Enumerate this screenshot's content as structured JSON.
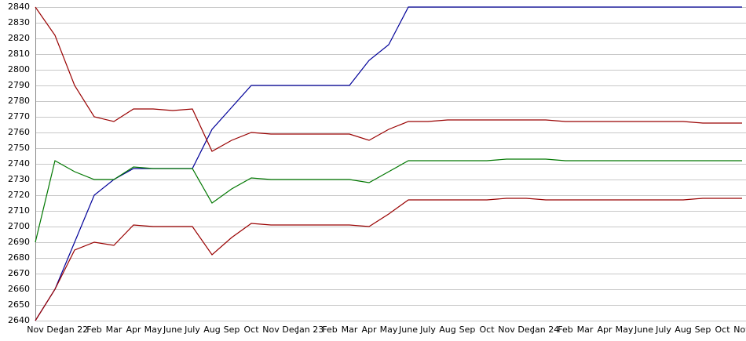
{
  "chart_data": {
    "type": "line",
    "categories": [
      "Nov",
      "Dec",
      "Jan 22",
      "Feb",
      "Mar",
      "Apr",
      "May",
      "June",
      "July",
      "Aug",
      "Sep",
      "Oct",
      "Nov",
      "Dec",
      "Jan 23",
      "Feb",
      "Mar",
      "Apr",
      "May",
      "June",
      "July",
      "Aug",
      "Sep",
      "Oct",
      "Nov",
      "Dec",
      "Jan 24",
      "Feb",
      "Mar",
      "Apr",
      "May",
      "June",
      "July",
      "Aug",
      "Sep",
      "Oct",
      "Nov"
    ],
    "series": [
      {
        "color": "#000099",
        "values": [
          2640,
          2660,
          2690,
          2720,
          2730,
          2737,
          2737,
          2737,
          2737,
          2762,
          2776,
          2790,
          2790,
          2790,
          2790,
          2790,
          2790,
          2806,
          2816,
          2840,
          2840,
          2840,
          2840,
          2840,
          2840,
          2840,
          2840,
          2840,
          2840,
          2840,
          2840,
          2840,
          2840,
          2840,
          2840,
          2840,
          2840
        ]
      },
      {
        "color": "#990000",
        "values": [
          2840,
          2822,
          2790,
          2770,
          2767,
          2775,
          2775,
          2774,
          2775,
          2748,
          2755,
          2760,
          2759,
          2759,
          2759,
          2759,
          2759,
          2755,
          2762,
          2767,
          2767,
          2768,
          2768,
          2768,
          2768,
          2768,
          2768,
          2767,
          2767,
          2767,
          2767,
          2767,
          2767,
          2767,
          2766,
          2766,
          2766
        ]
      },
      {
        "color": "#007700",
        "values": [
          2690,
          2742,
          2735,
          2730,
          2730,
          2738,
          2737,
          2737,
          2737,
          2715,
          2724,
          2731,
          2730,
          2730,
          2730,
          2730,
          2730,
          2728,
          2735,
          2742,
          2742,
          2742,
          2742,
          2742,
          2743,
          2743,
          2743,
          2742,
          2742,
          2742,
          2742,
          2742,
          2742,
          2742,
          2742,
          2742,
          2742
        ]
      },
      {
        "color": "#990000",
        "values": [
          2640,
          2660,
          2685,
          2690,
          2688,
          2701,
          2700,
          2700,
          2700,
          2682,
          2693,
          2702,
          2701,
          2701,
          2701,
          2701,
          2701,
          2700,
          2708,
          2717,
          2717,
          2717,
          2717,
          2717,
          2718,
          2718,
          2717,
          2717,
          2717,
          2717,
          2717,
          2717,
          2717,
          2717,
          2718,
          2718,
          2718
        ]
      }
    ],
    "ylim": [
      2640,
      2840
    ],
    "yticks": [
      2640,
      2650,
      2660,
      2670,
      2680,
      2690,
      2700,
      2710,
      2720,
      2730,
      2740,
      2750,
      2760,
      2770,
      2780,
      2790,
      2800,
      2810,
      2820,
      2830,
      2840
    ],
    "grid": true
  }
}
